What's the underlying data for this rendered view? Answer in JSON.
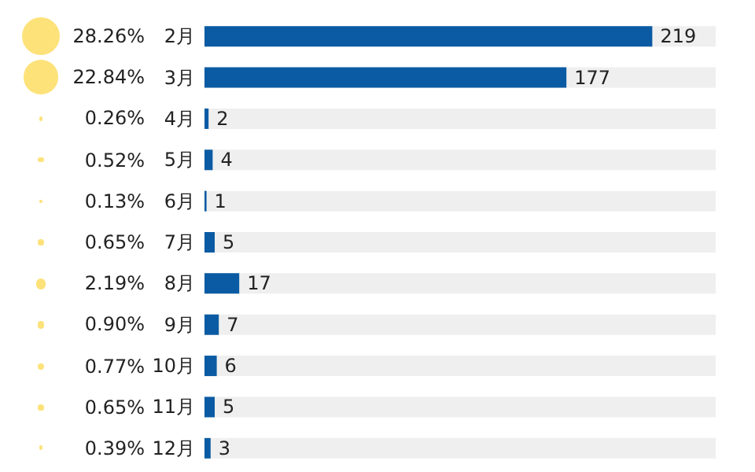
{
  "chart_data": {
    "type": "bar",
    "orientation": "horizontal",
    "categories": [
      "2月",
      "3月",
      "4月",
      "5月",
      "6月",
      "7月",
      "8月",
      "9月",
      "10月",
      "11月",
      "12月"
    ],
    "data_labels": true,
    "series": [
      {
        "color": "#0a5ba3",
        "values": [
          219,
          177,
          2,
          4,
          1,
          5,
          17,
          7,
          6,
          5,
          3
        ]
      }
    ],
    "annotations": [
      "28.26%",
      "22.84%",
      "0.26%",
      "0.52%",
      "0.13%",
      "0.65%",
      "2.19%",
      "0.90%",
      "0.77%",
      "0.65%",
      "0.39%"
    ]
  }
}
